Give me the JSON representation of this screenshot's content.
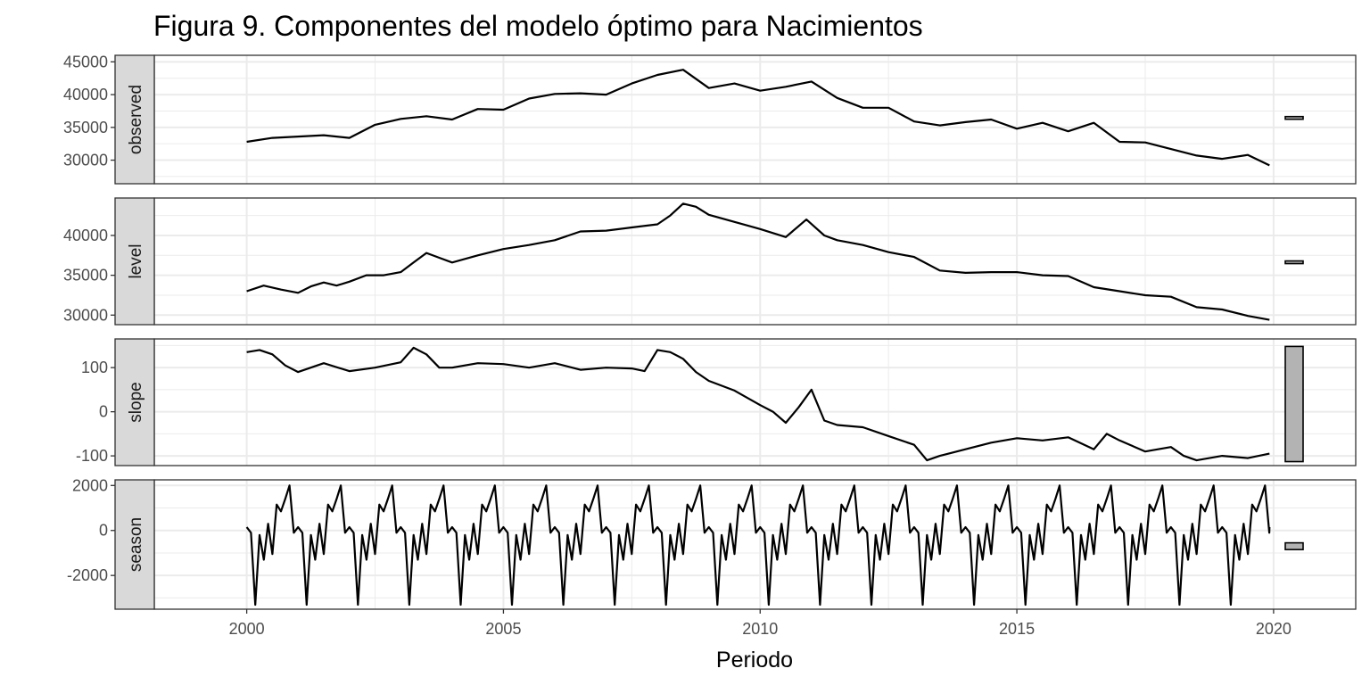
{
  "chart_data": {
    "type": "line",
    "title": "Figura 9. Componentes del modelo óptimo para Nacimientos",
    "xlabel": "Periodo",
    "xlim": [
      1998.2,
      2021.6
    ],
    "x_ticks": [
      2000,
      2005,
      2010,
      2015,
      2020
    ],
    "x_tick_labels": [
      "2000",
      "2005",
      "2010",
      "2015",
      "2020"
    ],
    "grid": true,
    "panels": [
      {
        "name": "observed",
        "ylim": [
          26400,
          46000
        ],
        "y_ticks": [
          30000,
          35000,
          40000,
          45000
        ],
        "y_tick_labels": [
          "30000",
          "35000",
          "40000",
          "45000"
        ],
        "range_bar": [
          36350,
          36650
        ],
        "x": [
          2000.0,
          2000.5,
          2001.0,
          2001.5,
          2002.0,
          2002.5,
          2003.0,
          2003.5,
          2004.0,
          2004.5,
          2005.0,
          2005.5,
          2006.0,
          2006.5,
          2007.0,
          2007.5,
          2008.0,
          2008.5,
          2009.0,
          2009.5,
          2010.0,
          2010.5,
          2011.0,
          2011.5,
          2012.0,
          2012.5,
          2013.0,
          2013.5,
          2014.0,
          2014.5,
          2015.0,
          2015.5,
          2016.0,
          2016.5,
          2017.0,
          2017.5,
          2018.0,
          2018.5,
          2019.0,
          2019.5,
          2019.92
        ],
        "values": [
          32800,
          33400,
          33600,
          33800,
          33400,
          35400,
          36300,
          36700,
          36200,
          37800,
          37700,
          39400,
          40100,
          40200,
          40000,
          41700,
          43000,
          43800,
          41000,
          41700,
          40600,
          41200,
          42000,
          39500,
          38000,
          38000,
          35900,
          35300,
          35800,
          36200,
          34800,
          35700,
          34400,
          35700,
          32800,
          32700,
          31700,
          30700,
          30200,
          30800,
          29200
        ]
      },
      {
        "name": "level",
        "ylim": [
          28800,
          44700
        ],
        "y_ticks": [
          30000,
          35000,
          40000
        ],
        "y_tick_labels": [
          "30000",
          "35000",
          "40000"
        ],
        "range_bar": [
          36600,
          36800
        ],
        "x": [
          2000.0,
          2000.33,
          2000.67,
          2001.0,
          2001.25,
          2001.5,
          2001.75,
          2002.0,
          2002.33,
          2002.67,
          2003.0,
          2003.25,
          2003.5,
          2003.75,
          2004.0,
          2004.5,
          2005.0,
          2005.5,
          2006.0,
          2006.5,
          2007.0,
          2007.5,
          2008.0,
          2008.25,
          2008.5,
          2008.75,
          2009.0,
          2009.5,
          2010.0,
          2010.5,
          2010.9,
          2011.25,
          2011.5,
          2012.0,
          2012.5,
          2013.0,
          2013.5,
          2014.0,
          2014.5,
          2015.0,
          2015.5,
          2016.0,
          2016.5,
          2017.0,
          2017.5,
          2018.0,
          2018.5,
          2019.0,
          2019.5,
          2019.92
        ],
        "values": [
          33000,
          33700,
          33200,
          32800,
          33600,
          34100,
          33700,
          34200,
          35000,
          35000,
          35400,
          36600,
          37800,
          37200,
          36600,
          37500,
          38300,
          38800,
          39400,
          40500,
          40600,
          41000,
          41400,
          42500,
          44000,
          43600,
          42600,
          41700,
          40800,
          39800,
          42000,
          40000,
          39400,
          38800,
          37900,
          37300,
          35600,
          35300,
          35400,
          35400,
          35000,
          34900,
          33500,
          33000,
          32500,
          32300,
          31000,
          30700,
          29900,
          29400
        ]
      },
      {
        "name": "slope",
        "ylim": [
          -122,
          165
        ],
        "y_ticks": [
          -100,
          0,
          100
        ],
        "y_tick_labels": [
          "-100",
          "0",
          "100"
        ],
        "range_bar": [
          -113,
          148
        ],
        "x": [
          2000.0,
          2000.25,
          2000.5,
          2000.75,
          2001.0,
          2001.5,
          2002.0,
          2002.5,
          2003.0,
          2003.25,
          2003.5,
          2003.75,
          2004.0,
          2004.5,
          2005.0,
          2005.5,
          2006.0,
          2006.5,
          2007.0,
          2007.5,
          2007.75,
          2008.0,
          2008.25,
          2008.5,
          2008.75,
          2009.0,
          2009.5,
          2010.0,
          2010.25,
          2010.5,
          2010.75,
          2011.0,
          2011.25,
          2011.5,
          2012.0,
          2012.5,
          2013.0,
          2013.25,
          2013.5,
          2014.0,
          2014.5,
          2015.0,
          2015.5,
          2016.0,
          2016.5,
          2016.75,
          2017.0,
          2017.5,
          2018.0,
          2018.25,
          2018.5,
          2019.0,
          2019.5,
          2019.92
        ],
        "values": [
          135,
          140,
          130,
          105,
          90,
          110,
          92,
          100,
          112,
          145,
          130,
          100,
          100,
          110,
          108,
          100,
          110,
          95,
          100,
          98,
          92,
          140,
          135,
          120,
          90,
          70,
          48,
          15,
          0,
          -25,
          10,
          50,
          -20,
          -30,
          -35,
          -55,
          -75,
          -110,
          -100,
          -85,
          -70,
          -60,
          -65,
          -58,
          -85,
          -50,
          -65,
          -90,
          -80,
          -100,
          -110,
          -100,
          -105,
          -95
        ]
      },
      {
        "name": "season",
        "ylim": [
          -3500,
          2250
        ],
        "y_ticks": [
          -2000,
          0,
          2000
        ],
        "y_tick_labels": [
          "-2000",
          "0",
          "2000"
        ],
        "range_bar": [
          -850,
          -550
        ],
        "pattern_period": 1.0,
        "pattern_values": [
          150,
          -100,
          -3300,
          -200,
          -1300,
          300,
          -1050,
          1150,
          850,
          1400,
          2000,
          -100,
          150
        ],
        "x_range": [
          2000.0,
          2019.92
        ]
      }
    ]
  }
}
